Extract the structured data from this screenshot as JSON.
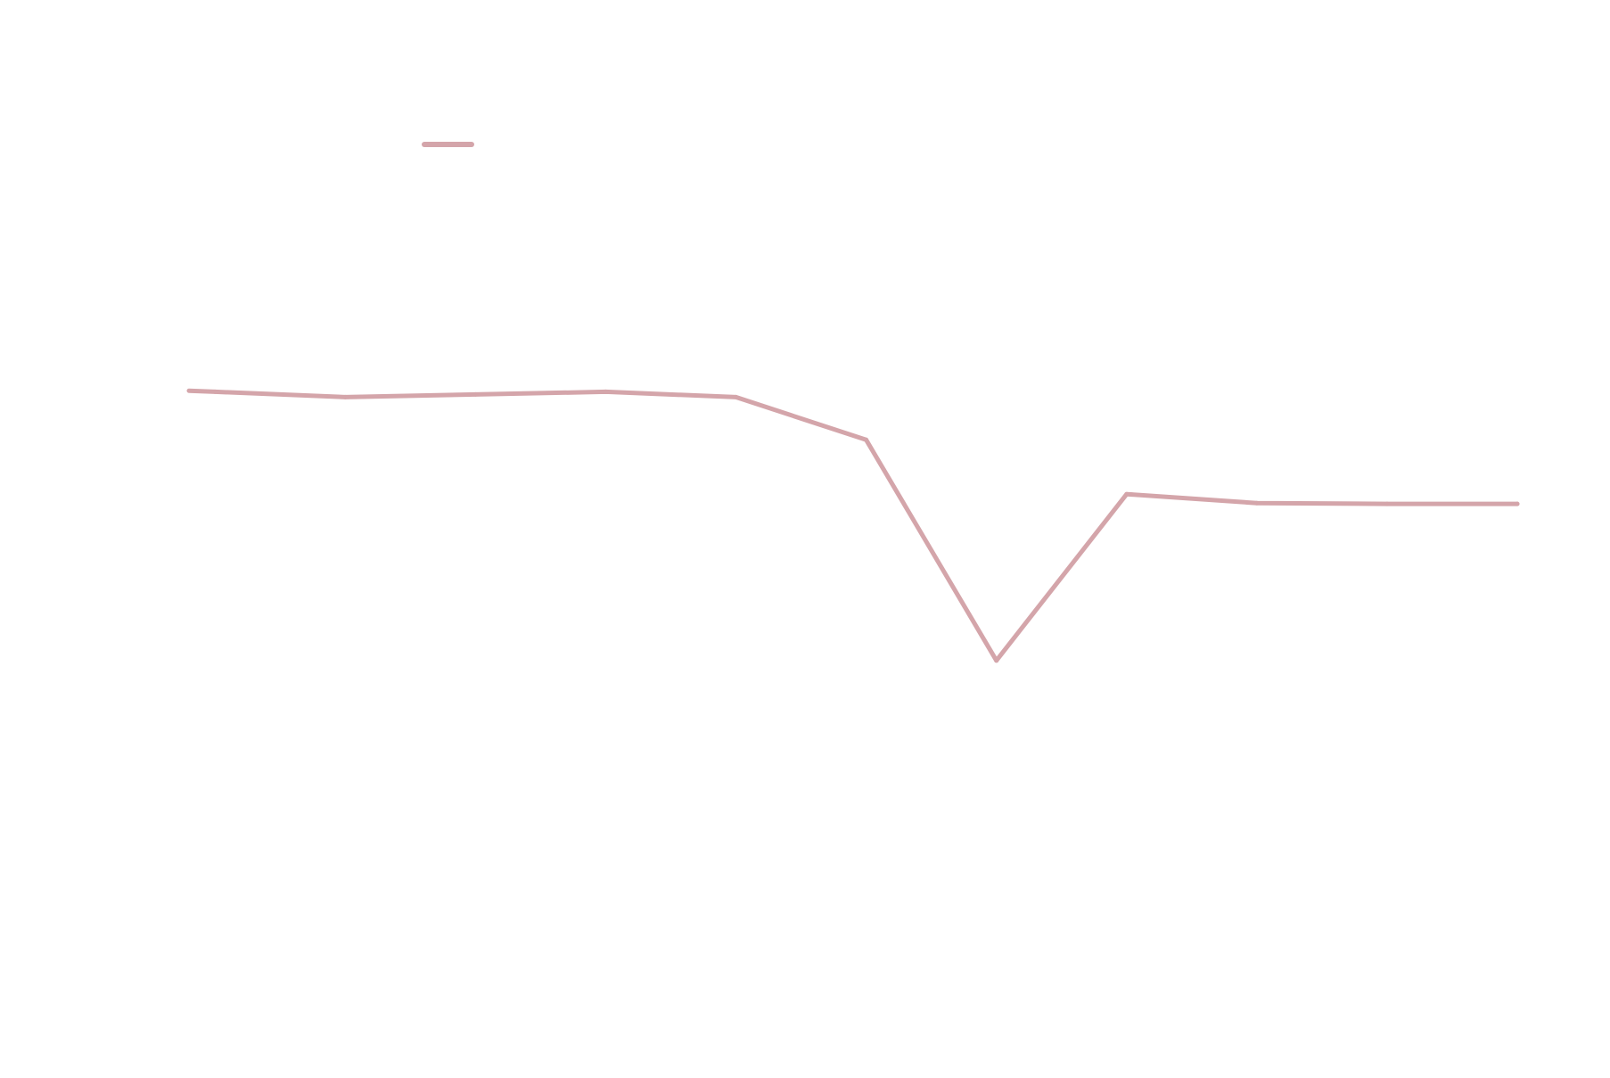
{
  "chart_data": {
    "type": "line",
    "x": [
      0,
      1,
      2,
      3,
      4,
      5,
      6,
      7,
      8,
      9,
      10
    ],
    "series": [
      {
        "values": [
          70.0,
          69.4,
          69.7,
          70.0,
          69.4,
          64.6,
          39.8,
          58.5,
          57.5,
          57.4,
          57.4
        ],
        "color": "#d4a5aa"
      }
    ],
    "xlim": [
      -0.2,
      10
    ],
    "ylim": [
      0,
      100
    ],
    "grid": false,
    "legend": {
      "position": "top-left",
      "entries": [
        {
          "color": "#d4a5aa"
        }
      ]
    }
  }
}
